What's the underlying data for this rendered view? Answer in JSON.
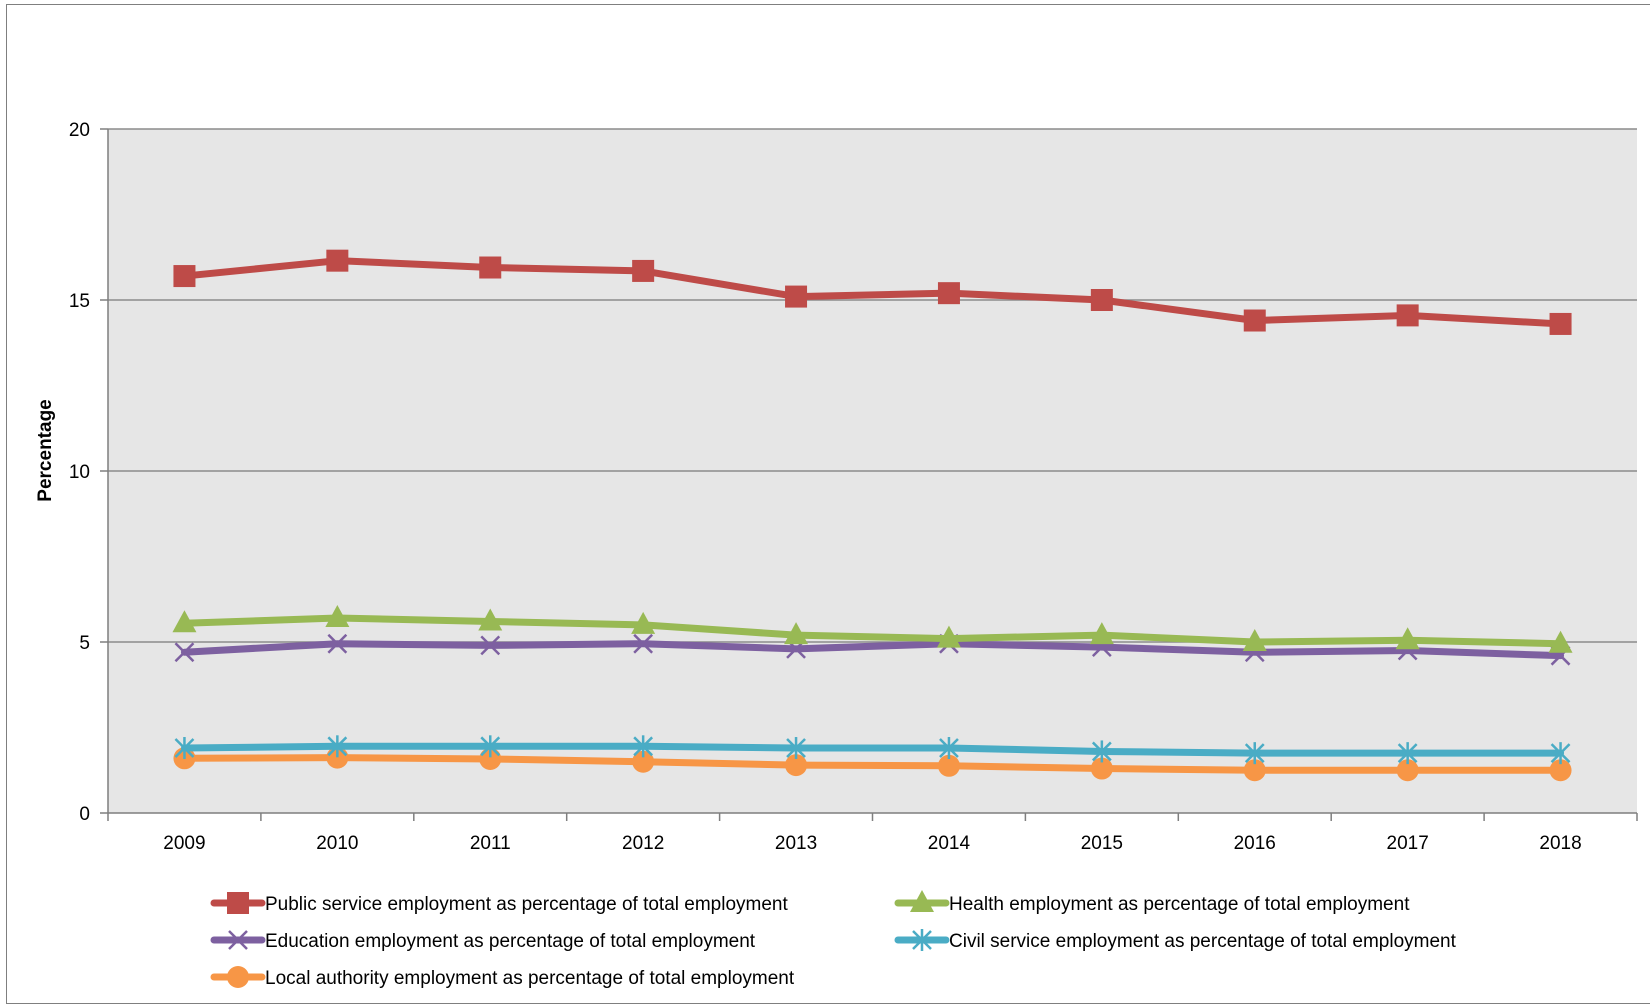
{
  "chart_data": {
    "type": "line",
    "ylabel": "Percentage",
    "xlabel": "",
    "ylim": [
      0,
      20
    ],
    "yticks": [
      "0",
      "5",
      "10",
      "15",
      "20"
    ],
    "categories": [
      "2009",
      "2010",
      "2011",
      "2012",
      "2013",
      "2014",
      "2015",
      "2016",
      "2017",
      "2018"
    ],
    "grid": "horizontal major gridlines",
    "legend_position": "bottom",
    "plot_background": "#e6e6e6",
    "series": [
      {
        "name": "Public service employment as percentage of total employment",
        "color": "#be4b48",
        "marker": "square",
        "values": [
          15.7,
          16.15,
          15.95,
          15.85,
          15.1,
          15.2,
          15.0,
          14.4,
          14.55,
          14.3
        ]
      },
      {
        "name": "Health employment as percentage of total employment",
        "color": "#98b954",
        "marker": "triangle",
        "values": [
          5.55,
          5.7,
          5.6,
          5.5,
          5.2,
          5.1,
          5.2,
          5.0,
          5.05,
          4.95
        ]
      },
      {
        "name": "Education employment as percentage of total employment",
        "color": "#7d60a0",
        "marker": "x",
        "values": [
          4.7,
          4.95,
          4.9,
          4.95,
          4.8,
          4.95,
          4.85,
          4.7,
          4.75,
          4.6
        ]
      },
      {
        "name": "Civil service employment as percentage of total employment",
        "color": "#4aacc5",
        "marker": "star",
        "values": [
          1.9,
          1.95,
          1.95,
          1.95,
          1.9,
          1.9,
          1.8,
          1.75,
          1.75,
          1.75
        ]
      },
      {
        "name": "Local authority employment as percentage of total employment",
        "color": "#f79646",
        "marker": "circle",
        "values": [
          1.6,
          1.62,
          1.58,
          1.5,
          1.4,
          1.38,
          1.3,
          1.25,
          1.25,
          1.25
        ]
      }
    ]
  }
}
